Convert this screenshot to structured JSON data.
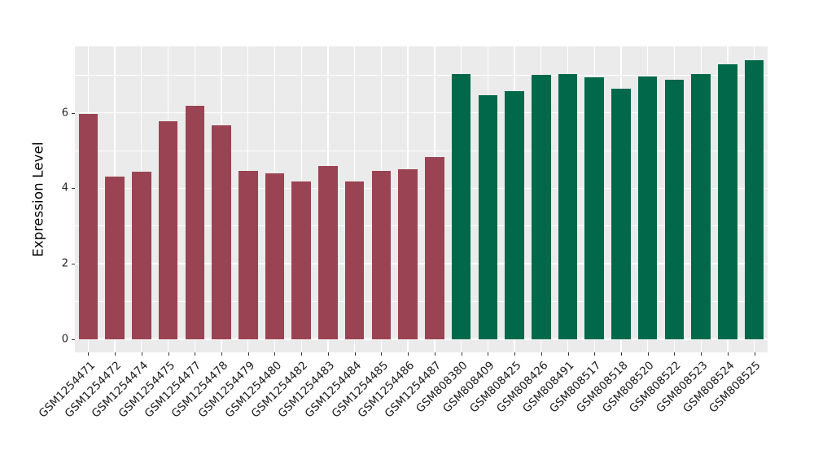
{
  "chart_data": {
    "type": "bar",
    "title": "",
    "xlabel": "",
    "ylabel": "Expression Level",
    "ylim": [
      0,
      7.76
    ],
    "yticks": [
      0,
      2,
      4,
      6
    ],
    "yticks_minor": [
      1,
      3,
      5,
      7
    ],
    "grid": true,
    "legend": "none",
    "panel_background": "#EBEBEB",
    "gridline_color": "#FFFFFF",
    "tick_color": "#333333",
    "colors": {
      "group1": "#9A4352",
      "group2": "#01684A"
    },
    "bars": [
      {
        "label": "GSM1254471",
        "value": 5.98,
        "group": "group1"
      },
      {
        "label": "GSM1254472",
        "value": 4.3,
        "group": "group1"
      },
      {
        "label": "GSM1254474",
        "value": 4.44,
        "group": "group1"
      },
      {
        "label": "GSM1254475",
        "value": 5.78,
        "group": "group1"
      },
      {
        "label": "GSM1254477",
        "value": 6.18,
        "group": "group1"
      },
      {
        "label": "GSM1254478",
        "value": 5.66,
        "group": "group1"
      },
      {
        "label": "GSM1254479",
        "value": 4.46,
        "group": "group1"
      },
      {
        "label": "GSM1254480",
        "value": 4.4,
        "group": "group1"
      },
      {
        "label": "GSM1254482",
        "value": 4.19,
        "group": "group1"
      },
      {
        "label": "GSM1254483",
        "value": 4.6,
        "group": "group1"
      },
      {
        "label": "GSM1254484",
        "value": 4.19,
        "group": "group1"
      },
      {
        "label": "GSM1254485",
        "value": 4.47,
        "group": "group1"
      },
      {
        "label": "GSM1254486",
        "value": 4.5,
        "group": "group1"
      },
      {
        "label": "GSM1254487",
        "value": 4.82,
        "group": "group1"
      },
      {
        "label": "GSM808380",
        "value": 7.03,
        "group": "group2"
      },
      {
        "label": "GSM808409",
        "value": 6.47,
        "group": "group2"
      },
      {
        "label": "GSM808425",
        "value": 6.58,
        "group": "group2"
      },
      {
        "label": "GSM808426",
        "value": 7.0,
        "group": "group2"
      },
      {
        "label": "GSM808491",
        "value": 7.03,
        "group": "group2"
      },
      {
        "label": "GSM808517",
        "value": 6.95,
        "group": "group2"
      },
      {
        "label": "GSM808518",
        "value": 6.64,
        "group": "group2"
      },
      {
        "label": "GSM808520",
        "value": 6.97,
        "group": "group2"
      },
      {
        "label": "GSM808522",
        "value": 6.87,
        "group": "group2"
      },
      {
        "label": "GSM808523",
        "value": 7.02,
        "group": "group2"
      },
      {
        "label": "GSM808524",
        "value": 7.28,
        "group": "group2"
      },
      {
        "label": "GSM808525",
        "value": 7.4,
        "group": "group2"
      }
    ]
  }
}
